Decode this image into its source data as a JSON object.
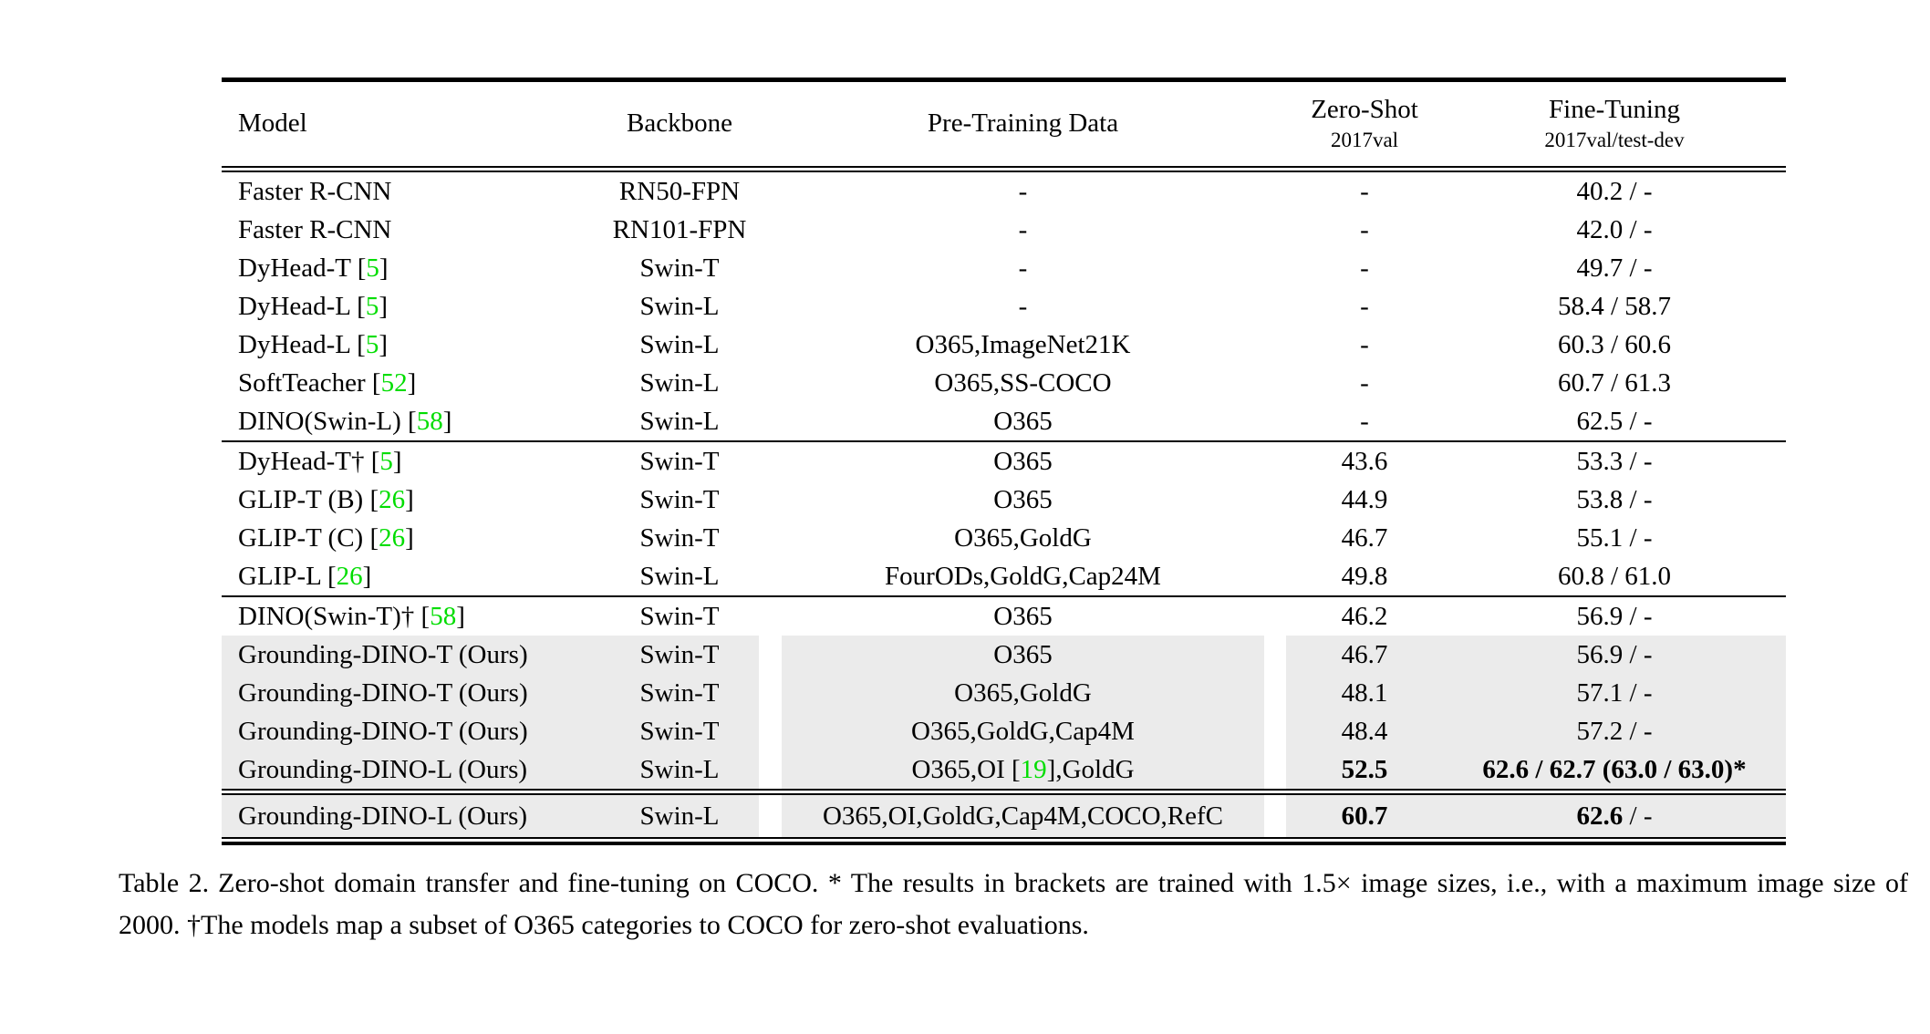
{
  "colors": {
    "row_highlight": "#ebebeb",
    "citation_green": "#00dd00",
    "text": "#000000"
  },
  "header": {
    "columns": [
      {
        "label": "Model"
      },
      {
        "label": "Backbone"
      },
      {
        "label": "Pre-Training Data"
      },
      {
        "label": "Zero-Shot",
        "sublabel": "2017val"
      },
      {
        "label": "Fine-Tuning",
        "sublabel": "2017val/test-dev"
      }
    ]
  },
  "groups": [
    {
      "rows": [
        {
          "highlight": false,
          "model": "Faster R-CNN",
          "backbone": "RN50-FPN",
          "pretraining": "-",
          "zero_shot": "-",
          "fine_tuning": "40.2 / -"
        },
        {
          "highlight": false,
          "model": "Faster R-CNN",
          "backbone": "RN101-FPN",
          "pretraining": "-",
          "zero_shot": "-",
          "fine_tuning": "42.0 / -"
        },
        {
          "highlight": false,
          "model": [
            "DyHead-T [",
            {
              "t": "5",
              "style": "green"
            },
            "]"
          ],
          "backbone": "Swin-T",
          "pretraining": "-",
          "zero_shot": "-",
          "fine_tuning": "49.7 / -"
        },
        {
          "highlight": false,
          "model": [
            "DyHead-L [",
            {
              "t": "5",
              "style": "green"
            },
            "]"
          ],
          "backbone": "Swin-L",
          "pretraining": "-",
          "zero_shot": "-",
          "fine_tuning": "58.4 / 58.7"
        },
        {
          "highlight": false,
          "model": [
            "DyHead-L [",
            {
              "t": "5",
              "style": "green"
            },
            "]"
          ],
          "backbone": "Swin-L",
          "pretraining": "O365,ImageNet21K",
          "zero_shot": "-",
          "fine_tuning": "60.3 / 60.6"
        },
        {
          "highlight": false,
          "model": [
            "SoftTeacher [",
            {
              "t": "52",
              "style": "green"
            },
            "]"
          ],
          "backbone": "Swin-L",
          "pretraining": "O365,SS-COCO",
          "zero_shot": "-",
          "fine_tuning": "60.7 / 61.3"
        },
        {
          "highlight": false,
          "model": [
            "DINO(Swin-L) [",
            {
              "t": "58",
              "style": "green"
            },
            "]"
          ],
          "backbone": "Swin-L",
          "pretraining": "O365",
          "zero_shot": "-",
          "fine_tuning": "62.5 / -"
        }
      ]
    },
    {
      "rows": [
        {
          "highlight": false,
          "model": [
            "DyHead-T† [",
            {
              "t": "5",
              "style": "green"
            },
            "]"
          ],
          "backbone": "Swin-T",
          "pretraining": "O365",
          "zero_shot": "43.6",
          "fine_tuning": "53.3 / -"
        },
        {
          "highlight": false,
          "model": [
            "GLIP-T (B) [",
            {
              "t": "26",
              "style": "green"
            },
            "]"
          ],
          "backbone": "Swin-T",
          "pretraining": "O365",
          "zero_shot": "44.9",
          "fine_tuning": "53.8 / -"
        },
        {
          "highlight": false,
          "model": [
            "GLIP-T (C) [",
            {
              "t": "26",
              "style": "green"
            },
            "]"
          ],
          "backbone": "Swin-T",
          "pretraining": "O365,GoldG",
          "zero_shot": "46.7",
          "fine_tuning": "55.1 / -"
        },
        {
          "highlight": false,
          "model": [
            "GLIP-L [",
            {
              "t": "26",
              "style": "green"
            },
            "]"
          ],
          "backbone": "Swin-L",
          "pretraining": "FourODs,GoldG,Cap24M",
          "zero_shot": "49.8",
          "fine_tuning": "60.8 / 61.0"
        }
      ]
    },
    {
      "rows": [
        {
          "highlight": false,
          "model": [
            "DINO(Swin-T)† [",
            {
              "t": "58",
              "style": "green"
            },
            "]"
          ],
          "backbone": "Swin-T",
          "pretraining": "O365",
          "zero_shot": "46.2",
          "fine_tuning": "56.9 / -"
        },
        {
          "highlight": true,
          "model": "Grounding-DINO-T (Ours)",
          "backbone": "Swin-T",
          "pretraining": "O365",
          "zero_shot": "46.7",
          "fine_tuning": "56.9 / -"
        },
        {
          "highlight": true,
          "model": "Grounding-DINO-T (Ours)",
          "backbone": "Swin-T",
          "pretraining": "O365,GoldG",
          "zero_shot": "48.1",
          "fine_tuning": "57.1 / -"
        },
        {
          "highlight": true,
          "model": "Grounding-DINO-T (Ours)",
          "backbone": "Swin-T",
          "pretraining": "O365,GoldG,Cap4M",
          "zero_shot": "48.4",
          "fine_tuning": "57.2 / -"
        },
        {
          "highlight": true,
          "model": "Grounding-DINO-L (Ours)",
          "backbone": "Swin-L",
          "pretraining": [
            "O365,OI [",
            {
              "t": "19",
              "style": "green"
            },
            "],GoldG"
          ],
          "zero_shot": [
            {
              "t": "52.5",
              "style": "bold"
            }
          ],
          "fine_tuning": [
            {
              "t": "62.6 / 62.7 (63.0 / 63.0)*",
              "style": "bold"
            }
          ]
        }
      ]
    },
    {
      "rows": [
        {
          "highlight": true,
          "model": "Grounding-DINO-L (Ours)",
          "backbone": "Swin-L",
          "pretraining": "O365,OI,GoldG,Cap4M,COCO,RefC",
          "zero_shot": [
            {
              "t": "60.7",
              "style": "bold"
            }
          ],
          "fine_tuning": [
            {
              "t": "62.6",
              "style": "bold"
            },
            " / -"
          ]
        }
      ]
    }
  ],
  "caption": {
    "label": "Table 2.",
    "text": "Zero-shot domain transfer and fine-tuning on COCO. * The results in brackets are trained with 1.5× image sizes, i.e., with a maximum image size of 2000. †The models map a subset of O365 categories to COCO for zero-shot evaluations."
  }
}
